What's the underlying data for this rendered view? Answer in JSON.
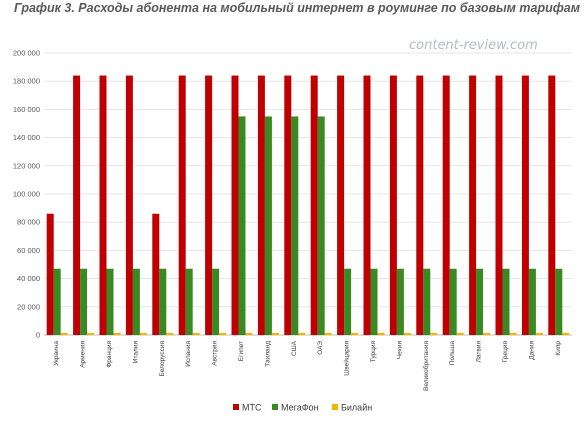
{
  "chart_data": {
    "type": "bar",
    "title": "График 3. Расходы абонента на мобильный интернет в роуминге по базовым тарифам",
    "watermark": "content-review.com",
    "xlabel": "",
    "ylabel": "",
    "ylim": [
      0,
      200000
    ],
    "yticks": [
      0,
      20000,
      40000,
      60000,
      80000,
      100000,
      120000,
      140000,
      160000,
      180000,
      200000
    ],
    "ytick_labels": [
      "0",
      "20 000",
      "40 000",
      "60 000",
      "80 000",
      "100 000",
      "120 000",
      "140 000",
      "160 000",
      "180 000",
      "200 000"
    ],
    "grid": true,
    "legend_position": "bottom",
    "categories": [
      "Украина",
      "Армения",
      "Франция",
      "Италия",
      "Белоруссия",
      "Испания",
      "Австрия",
      "Египет",
      "Таиланд",
      "США",
      "ОАЭ",
      "Швейцария",
      "Турция",
      "Чехия",
      "Великобритания",
      "Польша",
      "Латвия",
      "Греция",
      "Дания",
      "Кипр"
    ],
    "series": [
      {
        "name": "МТС",
        "color": "#c00000",
        "values": [
          86000,
          184000,
          184000,
          184000,
          86000,
          184000,
          184000,
          184000,
          184000,
          184000,
          184000,
          184000,
          184000,
          184000,
          184000,
          184000,
          184000,
          184000,
          184000,
          184000
        ]
      },
      {
        "name": "МегаФон",
        "color": "#3a8a23",
        "values": [
          47000,
          47000,
          47000,
          47000,
          47000,
          47000,
          47000,
          155000,
          155000,
          155000,
          155000,
          47000,
          47000,
          47000,
          47000,
          47000,
          47000,
          47000,
          47000,
          47000
        ]
      },
      {
        "name": "Билайн",
        "color": "#f2b600",
        "values": [
          1500,
          1500,
          1500,
          1500,
          1500,
          1500,
          1500,
          1500,
          1500,
          1500,
          1500,
          1500,
          1500,
          1500,
          1500,
          1500,
          1500,
          1500,
          1500,
          1500
        ]
      }
    ]
  }
}
